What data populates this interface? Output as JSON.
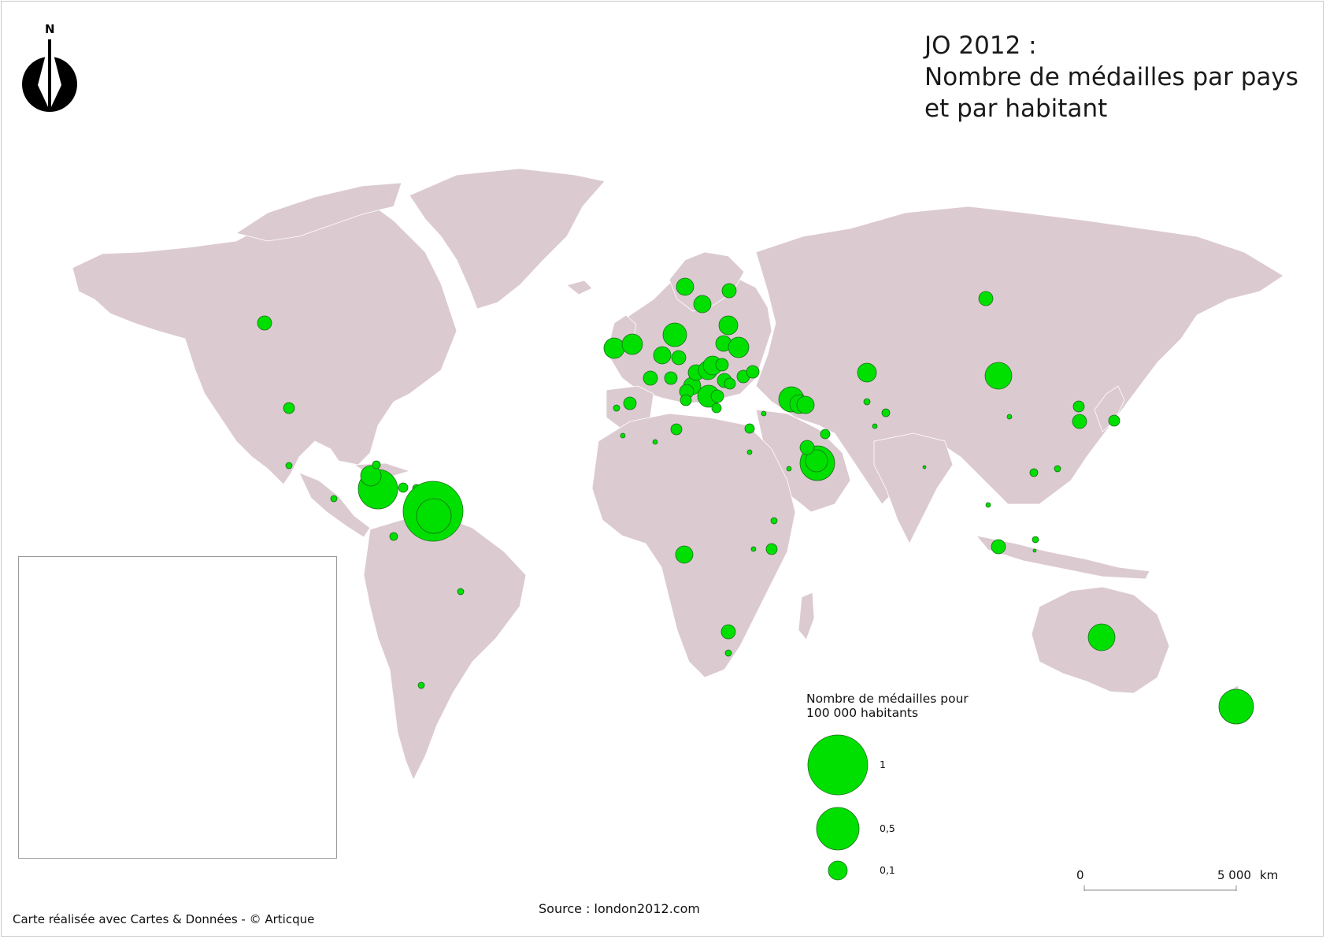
{
  "title": {
    "line1": "JO 2012 :",
    "line2": "Nombre de médailles par pays",
    "line3": "et par habitant"
  },
  "compass": {
    "label": "N"
  },
  "legend": {
    "title_line1": "Nombre de médailles pour",
    "title_line2": "100 000 habitants",
    "items": [
      {
        "label": "1",
        "value": 1
      },
      {
        "label": "0,5",
        "value": 0.5
      },
      {
        "label": "0,1",
        "value": 0.1
      }
    ]
  },
  "scale_bar": {
    "start": "0",
    "end": "5 000",
    "unit": "km"
  },
  "source": "Source : london2012.com",
  "credit": "Carte réalisée avec Cartes & Données - © Articque",
  "colors": {
    "land": "#dccad1",
    "bubble": "#00e000",
    "bubble_stroke": "#1a6d1a",
    "background": "#ffffff"
  }
}
